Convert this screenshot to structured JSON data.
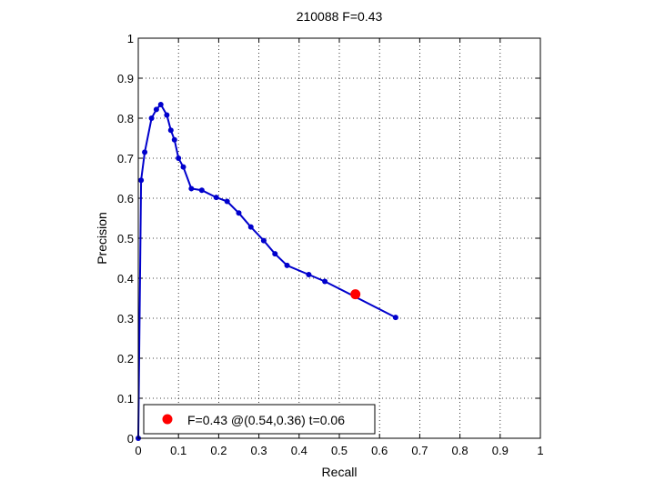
{
  "chart_data": {
    "type": "line",
    "title": "210088 F=0.43",
    "xlabel": "Recall",
    "ylabel": "Precision",
    "xlim": [
      0,
      1
    ],
    "ylim": [
      0,
      1
    ],
    "grid": true,
    "xticks": [
      "0",
      "0.1",
      "0.2",
      "0.3",
      "0.4",
      "0.5",
      "0.6",
      "0.7",
      "0.8",
      "0.9",
      "1"
    ],
    "yticks": [
      "0",
      "0.1",
      "0.2",
      "0.3",
      "0.4",
      "0.5",
      "0.6",
      "0.7",
      "0.8",
      "0.9",
      "1"
    ],
    "legend_position": "bottom-left",
    "series": [
      {
        "color": "#0000cc",
        "x": [
          0.0,
          0.007,
          0.016,
          0.033,
          0.045,
          0.056,
          0.071,
          0.081,
          0.09,
          0.1,
          0.112,
          0.132,
          0.158,
          0.194,
          0.221,
          0.25,
          0.28,
          0.312,
          0.34,
          0.37,
          0.424,
          0.464,
          0.64
        ],
        "y": [
          0.0,
          0.645,
          0.715,
          0.8,
          0.822,
          0.834,
          0.808,
          0.77,
          0.746,
          0.7,
          0.678,
          0.624,
          0.62,
          0.602,
          0.592,
          0.563,
          0.528,
          0.494,
          0.461,
          0.432,
          0.409,
          0.392,
          0.302
        ]
      }
    ],
    "highlight_point": {
      "x": 0.54,
      "y": 0.36,
      "color": "#ff0000",
      "label": "F=0.43 @(0.54,0.36) t=0.06"
    }
  }
}
